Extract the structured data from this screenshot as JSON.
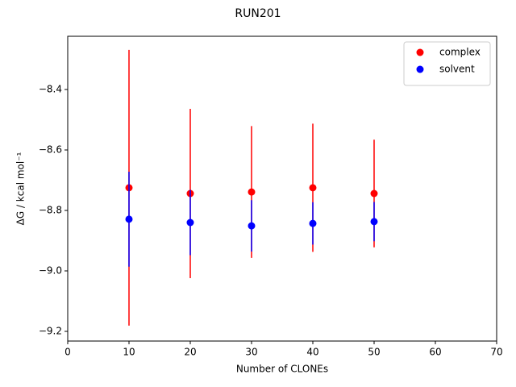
{
  "chart_data": {
    "type": "scatter",
    "title": "RUN201",
    "xlabel": "Number of CLONEs",
    "ylabel": "ΔG / kcal mol⁻¹",
    "series": [
      {
        "name": "complex",
        "color": "#ff0000",
        "x": [
          10,
          20,
          30,
          40,
          50
        ],
        "values": [
          -8.725,
          -8.744,
          -8.739,
          -8.725,
          -8.744
        ],
        "errors": [
          0.456,
          0.28,
          0.218,
          0.212,
          0.178
        ]
      },
      {
        "name": "solvent",
        "color": "#0000ff",
        "x": [
          10,
          20,
          30,
          40,
          50
        ],
        "values": [
          -8.829,
          -8.84,
          -8.851,
          -8.843,
          -8.837
        ],
        "errors": [
          0.157,
          0.108,
          0.085,
          0.07,
          0.065
        ]
      }
    ],
    "xlim": [
      0,
      70
    ],
    "xticks": [
      0,
      10,
      20,
      30,
      40,
      50,
      60,
      70
    ],
    "ylim": [
      -9.232,
      -8.224
    ],
    "yticks": [
      {
        "value": -9.2,
        "label": "−9.2"
      },
      {
        "value": -9.0,
        "label": "−9.0"
      },
      {
        "value": -8.8,
        "label": "−8.8"
      },
      {
        "value": -8.6,
        "label": "−8.6"
      },
      {
        "value": -8.4,
        "label": "−8.4"
      }
    ],
    "legend": "upper right",
    "grid": false
  }
}
